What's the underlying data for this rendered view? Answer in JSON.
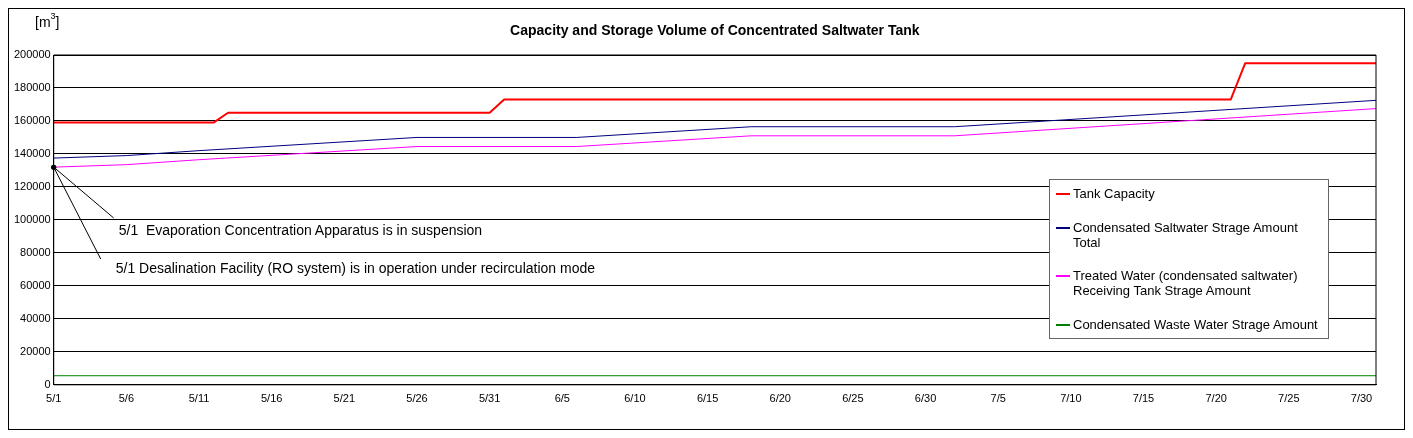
{
  "chart_data": {
    "type": "line",
    "title": "Capacity and Storage Volume of Concentrated Saltwater Tank",
    "ylabel": "[m$^{3}$]",
    "xlim": [
      "--05-01",
      "--07-31"
    ],
    "xticks": [
      {
        "value": "--05-01",
        "label": "5/1"
      },
      {
        "value": "--05-06",
        "label": "5/6"
      },
      {
        "value": "--05-11",
        "label": "5/11"
      },
      {
        "value": "--05-16",
        "label": "5/16"
      },
      {
        "value": "--05-21",
        "label": "5/21"
      },
      {
        "value": "--05-26",
        "label": "5/26"
      },
      {
        "value": "--05-31",
        "label": "5/31"
      },
      {
        "value": "--06-05",
        "label": "6/5"
      },
      {
        "value": "--06-10",
        "label": "6/10"
      },
      {
        "value": "--06-15",
        "label": "6/15"
      },
      {
        "value": "--06-20",
        "label": "6/20"
      },
      {
        "value": "--06-25",
        "label": "6/25"
      },
      {
        "value": "--06-30",
        "label": "6/30"
      },
      {
        "value": "--07-05",
        "label": "7/5"
      },
      {
        "value": "--07-10",
        "label": "7/10"
      },
      {
        "value": "--07-15",
        "label": "7/15"
      },
      {
        "value": "--07-20",
        "label": "7/20"
      },
      {
        "value": "--07-25",
        "label": "7/25"
      },
      {
        "value": "--07-30",
        "label": "7/30"
      }
    ],
    "ylim": [
      0,
      200000
    ],
    "yticks": [
      0,
      20000,
      40000,
      60000,
      80000,
      100000,
      120000,
      140000,
      160000,
      180000,
      200000
    ],
    "grid": "y",
    "legend": "right",
    "marker": "none",
    "line_style": "solid",
    "series": [
      {
        "name": "Tank Capacity",
        "color": "#ff0000",
        "x": [
          "--05-01",
          "--05-12",
          "--05-13",
          "--05-31",
          "--06-01",
          "--07-21",
          "--07-22",
          "--07-31"
        ],
        "values": [
          159000,
          159000,
          165000,
          165000,
          173000,
          173000,
          195000,
          195000
        ]
      },
      {
        "name": "Condensated Saltwater Strage Amount Total",
        "color": "#000080",
        "x": [
          "--05-01",
          "--05-06",
          "--05-11",
          "--05-26",
          "--06-06",
          "--06-18",
          "--07-02",
          "--07-31"
        ],
        "values": [
          137500,
          139000,
          142000,
          150000,
          150000,
          156500,
          156500,
          172500
        ]
      },
      {
        "name": "Treated Water (condensated saltwater) Receiving Tank Strage Amount",
        "color": "#ff00ff",
        "x": [
          "--05-01",
          "--05-06",
          "--05-11",
          "--05-26",
          "--06-06",
          "--06-18",
          "--07-02",
          "--07-31"
        ],
        "values": [
          132000,
          133500,
          136500,
          144500,
          144500,
          151000,
          151000,
          167500
        ]
      },
      {
        "name": "Condensated Waste Water Strage Amount",
        "color": "#008000",
        "x": [
          "--05-01",
          "--07-31"
        ],
        "values": [
          5500,
          5500
        ]
      }
    ],
    "annotations": [
      {
        "text": "5/1  Evaporation Concentration Apparatus is in suspension",
        "x": "--05-01",
        "y": 132000
      },
      {
        "text": "5/1 Desalination Facility (RO system) is in operation under recirculation mode",
        "x": "--05-01",
        "y": 132000
      }
    ]
  }
}
